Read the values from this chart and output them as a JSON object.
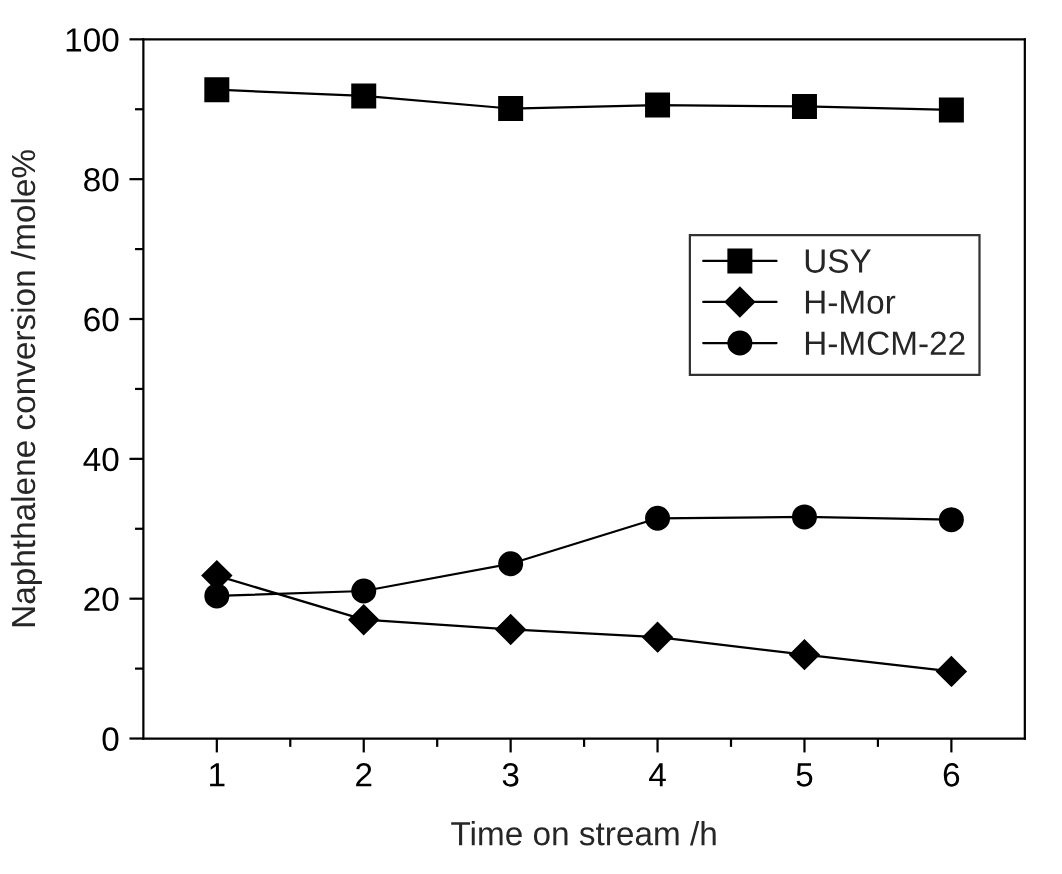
{
  "chart_data": {
    "type": "line",
    "xlabel": "Time on stream /h",
    "ylabel": "Naphthalene conversion /mole%",
    "x": [
      1,
      2,
      3,
      4,
      5,
      6
    ],
    "series": [
      {
        "name": "USY",
        "color": "#000000",
        "marker": "square",
        "values": [
          92.8,
          91.9,
          90.1,
          90.6,
          90.4,
          89.9
        ]
      },
      {
        "name": "H-Mor",
        "color": "#000000",
        "marker": "diamond",
        "values": [
          23.3,
          17.0,
          15.6,
          14.5,
          12.0,
          9.6
        ]
      },
      {
        "name": "H-MCM-22",
        "color": "#000000",
        "marker": "circle",
        "values": [
          20.4,
          21.1,
          25.0,
          31.5,
          31.7,
          31.3
        ]
      }
    ],
    "xlim": [
      0.5,
      6.5
    ],
    "ylim": [
      0,
      100
    ],
    "xticks": [
      1,
      2,
      3,
      4,
      5,
      6
    ],
    "yticks": [
      0,
      20,
      40,
      60,
      80,
      100
    ],
    "grid": false,
    "legend": "top right",
    "line_style": "solid"
  }
}
